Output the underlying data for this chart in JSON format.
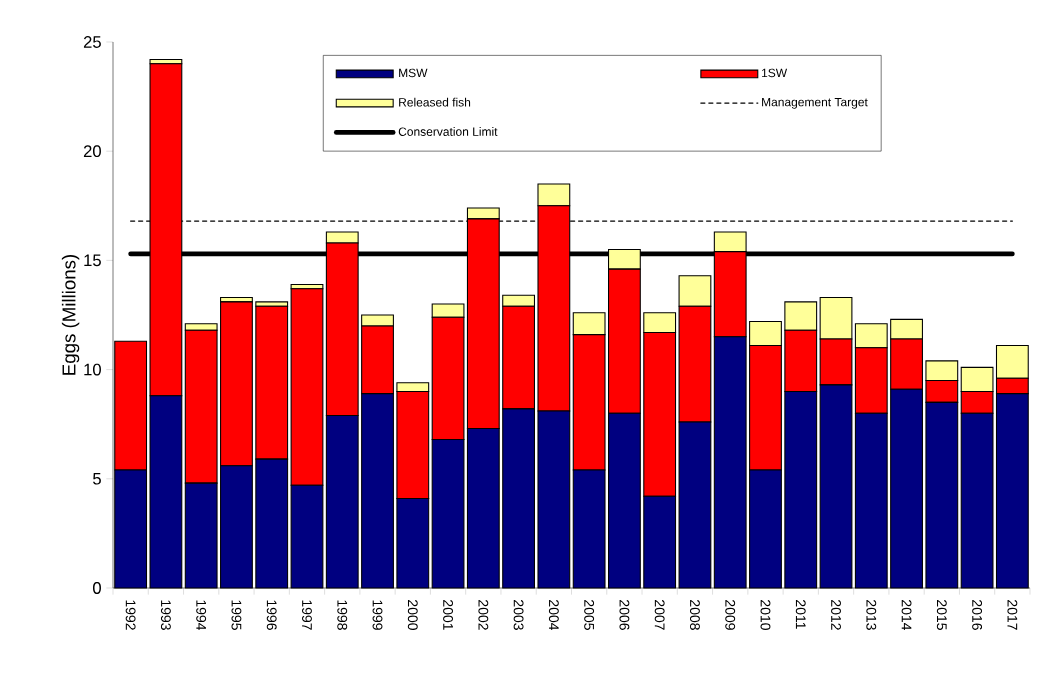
{
  "chart_data": {
    "type": "bar",
    "stacked": true,
    "ylabel": "Eggs (Millions)",
    "categories": [
      "1992",
      "1993",
      "1994",
      "1995",
      "1996",
      "1997",
      "1998",
      "1999",
      "2000",
      "2001",
      "2002",
      "2003",
      "2004",
      "2005",
      "2006",
      "2007",
      "2008",
      "2009",
      "2010",
      "2011",
      "2012",
      "2013",
      "2014",
      "2015",
      "2016",
      "2017"
    ],
    "series": [
      {
        "name": "MSW",
        "color": "#000080",
        "values": [
          5.4,
          8.8,
          4.8,
          5.6,
          5.9,
          4.7,
          7.9,
          8.9,
          4.1,
          6.8,
          7.3,
          8.2,
          8.1,
          5.4,
          8.0,
          4.2,
          7.6,
          11.5,
          5.4,
          9.0,
          9.3,
          8.0,
          9.1,
          8.5,
          8.0,
          8.9
        ]
      },
      {
        "name": "1SW",
        "color": "#ff0000",
        "values": [
          5.9,
          15.2,
          7.0,
          7.5,
          7.0,
          9.0,
          7.9,
          3.1,
          4.9,
          5.6,
          9.6,
          4.7,
          9.4,
          6.2,
          6.6,
          7.5,
          5.3,
          3.9,
          5.7,
          2.8,
          2.1,
          3.0,
          2.3,
          1.0,
          1.0,
          0.7
        ]
      },
      {
        "name": "Released fish",
        "color": "#ffff99",
        "values": [
          0,
          0.2,
          0.3,
          0.2,
          0.2,
          0.2,
          0.5,
          0.5,
          0.4,
          0.6,
          0.5,
          0.5,
          1.0,
          1.0,
          0.9,
          0.9,
          1.4,
          0.9,
          1.1,
          1.3,
          1.9,
          1.1,
          0.9,
          0.9,
          1.1,
          1.5
        ]
      }
    ],
    "ref_lines": [
      {
        "axis": "y",
        "value": 16.8,
        "label": "Management Target",
        "color": "#000000",
        "line_style": "dashed"
      },
      {
        "axis": "y",
        "value": 15.3,
        "label": "Conservation Limit",
        "color": "#000000",
        "line_style": "solid"
      }
    ],
    "ylim": [
      0,
      25
    ],
    "yticks": [
      0,
      5,
      10,
      15,
      20,
      25
    ],
    "grid": false,
    "legend": "top"
  }
}
